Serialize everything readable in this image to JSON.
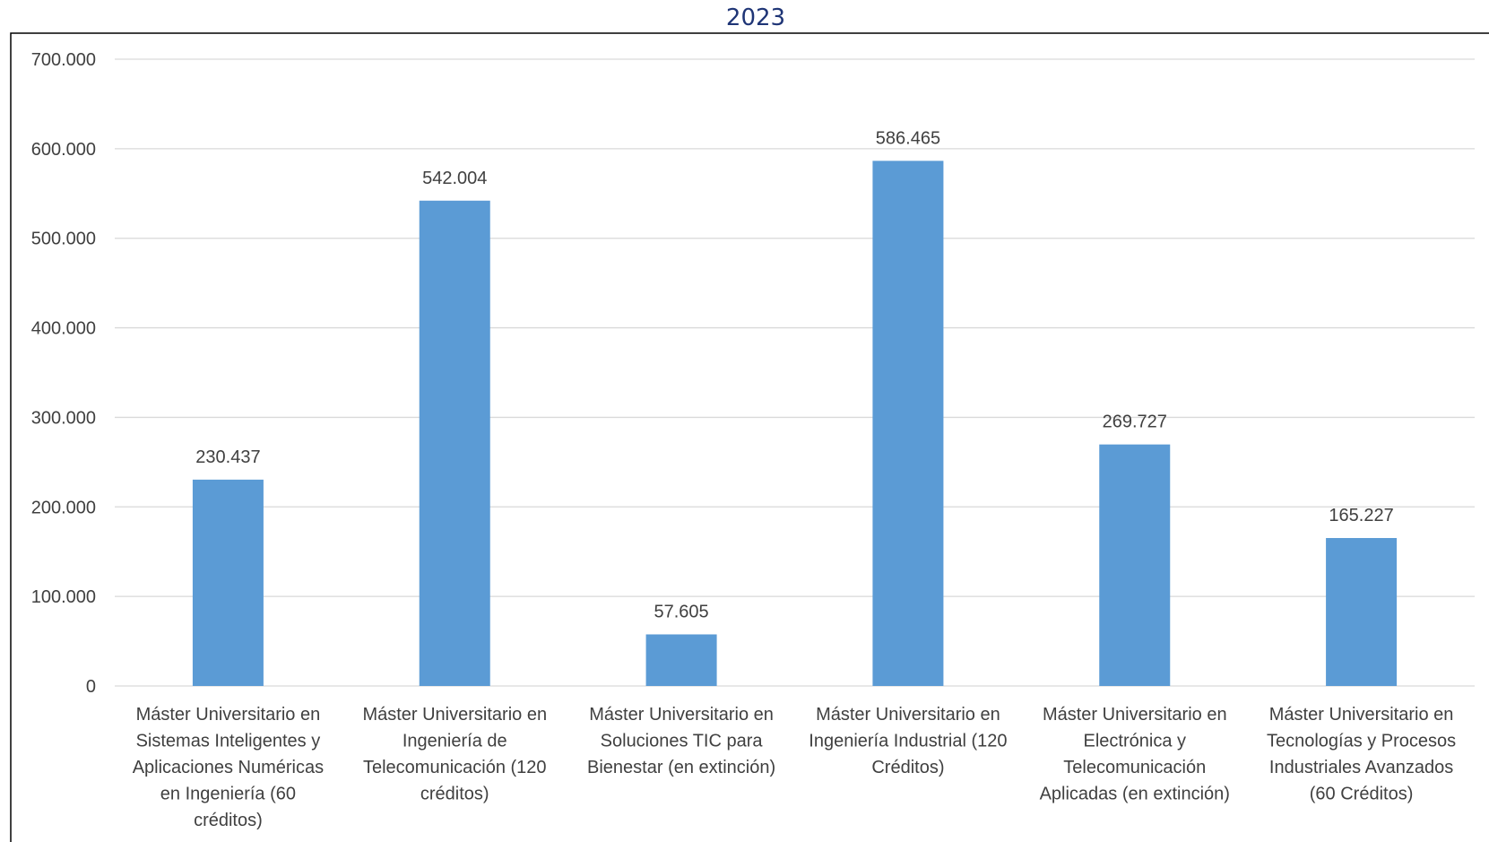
{
  "chart_data": {
    "type": "bar",
    "title": "2023",
    "xlabel": "",
    "ylabel": "",
    "ylim": [
      0,
      700000
    ],
    "yticks": [
      0,
      100000,
      200000,
      300000,
      400000,
      500000,
      600000,
      700000
    ],
    "ytick_labels": [
      "0",
      "100.000",
      "200.000",
      "300.000",
      "400.000",
      "500.000",
      "600.000",
      "700.000"
    ],
    "grid": true,
    "legend": "none",
    "bar_color": "#5b9bd5",
    "title_color": "#1f3576",
    "categories": [
      [
        "Máster Universitario en",
        "Sistemas Inteligentes y",
        "Aplicaciones Numéricas",
        "en Ingeniería (60",
        "créditos)"
      ],
      [
        "Máster Universitario en",
        "Ingeniería de",
        "Telecomunicación (120",
        "créditos)"
      ],
      [
        "Máster Universitario en",
        "Soluciones TIC para",
        "Bienestar (en extinción)"
      ],
      [
        "Máster Universitario en",
        "Ingeniería Industrial (120",
        "Créditos)"
      ],
      [
        "Máster Universitario en",
        "Electrónica y",
        "Telecomunicación",
        "Aplicadas (en extinción)"
      ],
      [
        "Máster Universitario en",
        "Tecnologías y Procesos",
        "Industriales Avanzados",
        "(60 Créditos)"
      ]
    ],
    "values": [
      230437,
      542004,
      57605,
      586465,
      269727,
      165227
    ],
    "value_labels": [
      "230.437",
      "542.004",
      "57.605",
      "586.465",
      "269.727",
      "165.227"
    ]
  }
}
